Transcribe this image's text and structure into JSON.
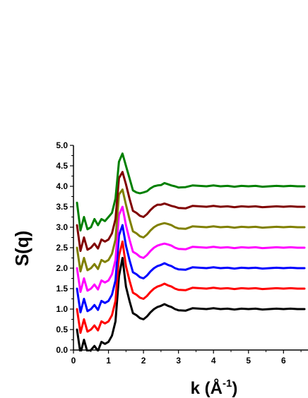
{
  "chart_data": {
    "type": "line",
    "title": "",
    "xlabel": "k (Å",
    "xlabel_sup": "-1",
    "xlabel_close": ")",
    "ylabel": "S(q)",
    "xlim": [
      0,
      6.7
    ],
    "ylim": [
      0,
      5.0
    ],
    "x_ticks": [
      "0",
      "1",
      "2",
      "3",
      "4",
      "5",
      "6"
    ],
    "y_ticks": [
      "0.0",
      "0.5",
      "1.0",
      "1.5",
      "2.0",
      "2.5",
      "3.0",
      "3.5",
      "4.0",
      "4.5",
      "5.0"
    ],
    "grid": false,
    "legend": "none",
    "x": [
      0.1,
      0.2,
      0.3,
      0.4,
      0.5,
      0.6,
      0.7,
      0.8,
      0.9,
      1.0,
      1.1,
      1.2,
      1.3,
      1.4,
      1.5,
      1.6,
      1.7,
      1.8,
      1.9,
      2.0,
      2.1,
      2.2,
      2.3,
      2.4,
      2.5,
      2.6,
      2.7,
      2.8,
      2.9,
      3.0,
      3.2,
      3.4,
      3.6,
      3.8,
      4.0,
      4.2,
      4.4,
      4.6,
      4.8,
      5.0,
      5.2,
      5.4,
      5.6,
      5.8,
      6.0,
      6.2,
      6.4,
      6.6
    ],
    "series": [
      {
        "color": "#000000",
        "values": [
          0.5,
          -0.08,
          0.25,
          -0.05,
          0.0,
          0.1,
          -0.02,
          0.2,
          0.15,
          0.2,
          0.35,
          0.7,
          1.8,
          2.25,
          1.55,
          1.2,
          0.9,
          0.85,
          0.78,
          0.75,
          0.82,
          0.92,
          1.0,
          1.05,
          1.08,
          1.12,
          1.08,
          1.05,
          1.0,
          0.97,
          0.96,
          1.02,
          1.01,
          1.0,
          1.02,
          1.0,
          1.01,
          0.99,
          1.01,
          1.0,
          1.01,
          0.99,
          1.0,
          1.01,
          1.0,
          1.01,
          1.0,
          1.0
        ]
      },
      {
        "color": "#ff0000",
        "values": [
          1.0,
          0.42,
          0.75,
          0.45,
          0.5,
          0.6,
          0.48,
          0.7,
          0.65,
          0.7,
          0.85,
          1.2,
          2.3,
          2.65,
          2.05,
          1.7,
          1.4,
          1.35,
          1.28,
          1.25,
          1.32,
          1.42,
          1.5,
          1.55,
          1.58,
          1.62,
          1.58,
          1.55,
          1.5,
          1.47,
          1.46,
          1.52,
          1.51,
          1.5,
          1.52,
          1.5,
          1.51,
          1.49,
          1.51,
          1.5,
          1.51,
          1.49,
          1.5,
          1.51,
          1.5,
          1.51,
          1.5,
          1.5
        ]
      },
      {
        "color": "#0000ff",
        "values": [
          1.5,
          0.92,
          1.25,
          0.95,
          1.0,
          1.1,
          0.98,
          1.2,
          1.15,
          1.2,
          1.35,
          1.7,
          2.8,
          3.05,
          2.55,
          2.2,
          1.9,
          1.85,
          1.78,
          1.75,
          1.82,
          1.92,
          2.0,
          2.05,
          2.08,
          2.12,
          2.08,
          2.05,
          2.0,
          1.97,
          1.96,
          2.02,
          2.01,
          2.0,
          2.02,
          2.0,
          2.01,
          1.99,
          2.01,
          2.0,
          2.01,
          1.99,
          2.0,
          2.01,
          2.0,
          2.01,
          2.0,
          2.0
        ]
      },
      {
        "color": "#ff00ff",
        "values": [
          2.0,
          1.42,
          1.75,
          1.45,
          1.5,
          1.6,
          1.48,
          1.7,
          1.65,
          1.7,
          1.85,
          2.2,
          3.3,
          3.5,
          3.05,
          2.7,
          2.4,
          2.35,
          2.28,
          2.25,
          2.32,
          2.42,
          2.5,
          2.55,
          2.58,
          2.6,
          2.58,
          2.55,
          2.5,
          2.47,
          2.46,
          2.52,
          2.51,
          2.5,
          2.52,
          2.5,
          2.51,
          2.49,
          2.51,
          2.5,
          2.51,
          2.49,
          2.5,
          2.51,
          2.5,
          2.51,
          2.5,
          2.5
        ]
      },
      {
        "color": "#808000",
        "values": [
          2.5,
          1.92,
          2.25,
          1.95,
          2.0,
          2.1,
          1.98,
          2.2,
          2.15,
          2.2,
          2.35,
          2.7,
          3.8,
          3.92,
          3.55,
          3.2,
          2.9,
          2.85,
          2.78,
          2.75,
          2.82,
          2.92,
          3.0,
          3.05,
          3.08,
          3.1,
          3.08,
          3.05,
          3.0,
          2.97,
          2.96,
          3.02,
          3.01,
          3.0,
          3.02,
          3.0,
          3.01,
          2.99,
          3.01,
          3.0,
          3.01,
          2.99,
          3.0,
          3.01,
          3.0,
          3.01,
          3.0,
          3.0
        ]
      },
      {
        "color": "#800000",
        "values": [
          3.05,
          2.42,
          2.75,
          2.45,
          2.5,
          2.6,
          2.48,
          2.7,
          2.65,
          2.7,
          2.85,
          3.2,
          4.2,
          4.35,
          4.05,
          3.7,
          3.4,
          3.35,
          3.28,
          3.25,
          3.32,
          3.42,
          3.5,
          3.55,
          3.55,
          3.58,
          3.55,
          3.52,
          3.5,
          3.47,
          3.46,
          3.52,
          3.51,
          3.5,
          3.52,
          3.5,
          3.51,
          3.49,
          3.51,
          3.5,
          3.51,
          3.49,
          3.5,
          3.51,
          3.5,
          3.51,
          3.5,
          3.5
        ]
      },
      {
        "color": "#008000",
        "values": [
          3.6,
          2.92,
          3.25,
          2.95,
          3.0,
          3.2,
          3.05,
          3.2,
          3.15,
          3.25,
          3.35,
          3.7,
          4.6,
          4.8,
          4.5,
          4.2,
          3.9,
          3.85,
          3.83,
          3.85,
          3.88,
          3.95,
          4.0,
          4.02,
          4.03,
          4.08,
          4.05,
          4.02,
          4.0,
          3.97,
          3.98,
          4.02,
          4.01,
          4.0,
          4.02,
          4.0,
          4.01,
          3.99,
          4.01,
          4.0,
          4.01,
          3.99,
          4.0,
          4.01,
          4.0,
          4.01,
          4.0,
          4.0
        ]
      }
    ]
  }
}
